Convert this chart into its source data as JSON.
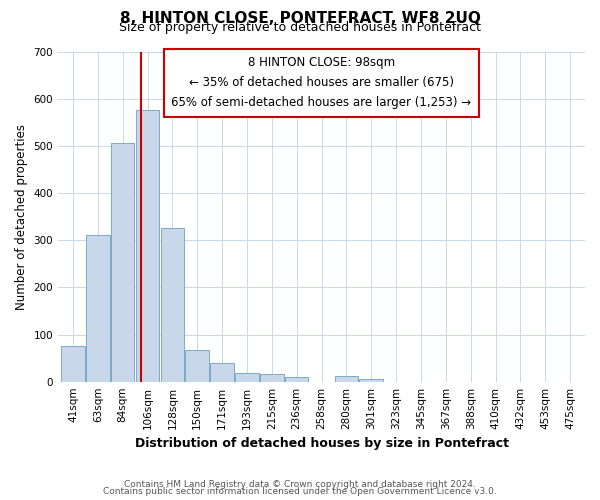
{
  "title": "8, HINTON CLOSE, PONTEFRACT, WF8 2UQ",
  "subtitle": "Size of property relative to detached houses in Pontefract",
  "xlabel": "Distribution of detached houses by size in Pontefract",
  "ylabel": "Number of detached properties",
  "bar_labels": [
    "41sqm",
    "63sqm",
    "84sqm",
    "106sqm",
    "128sqm",
    "150sqm",
    "171sqm",
    "193sqm",
    "215sqm",
    "236sqm",
    "258sqm",
    "280sqm",
    "301sqm",
    "323sqm",
    "345sqm",
    "367sqm",
    "388sqm",
    "410sqm",
    "432sqm",
    "453sqm",
    "475sqm"
  ],
  "bar_values": [
    75,
    310,
    505,
    575,
    325,
    68,
    40,
    18,
    16,
    10,
    0,
    11,
    6,
    0,
    0,
    0,
    0,
    0,
    0,
    0,
    0
  ],
  "bar_color": "#c8d8ea",
  "bar_edgecolor": "#7aaac8",
  "vline_x": 2.75,
  "vline_color": "#cc0000",
  "ylim": [
    0,
    700
  ],
  "yticks": [
    0,
    100,
    200,
    300,
    400,
    500,
    600,
    700
  ],
  "annotation_title": "8 HINTON CLOSE: 98sqm",
  "annotation_line1": "← 35% of detached houses are smaller (675)",
  "annotation_line2": "65% of semi-detached houses are larger (1,253) →",
  "footnote1": "Contains HM Land Registry data © Crown copyright and database right 2024.",
  "footnote2": "Contains public sector information licensed under the Open Government Licence v3.0.",
  "bg_color": "#ffffff",
  "grid_color": "#c8d8e8",
  "title_fontsize": 11,
  "subtitle_fontsize": 9,
  "ylabel_fontsize": 8.5,
  "xlabel_fontsize": 9,
  "annot_fontsize": 8.5,
  "tick_fontsize": 7.5
}
